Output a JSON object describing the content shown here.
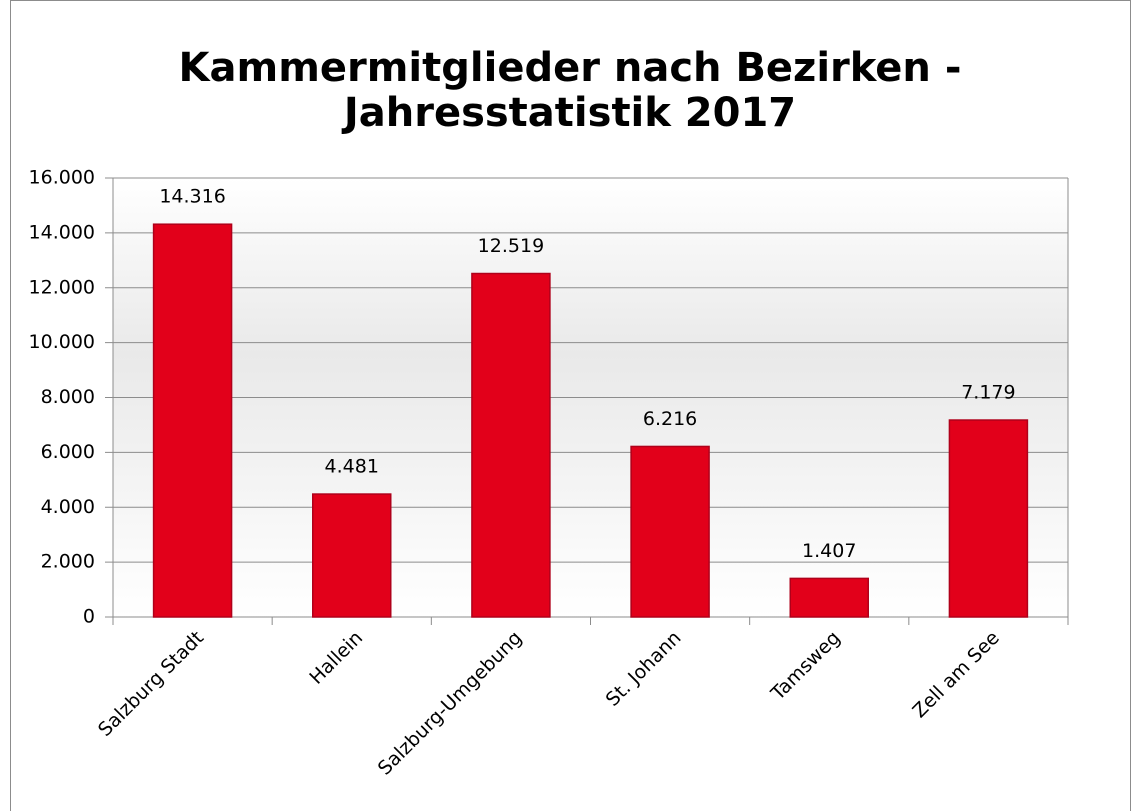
{
  "chart_data": {
    "type": "bar",
    "title": [
      "Kammermitglieder nach Bezirken -",
      "Jahresstatistik 2017"
    ],
    "categories": [
      "Salzburg Stadt",
      "Hallein",
      "Salzburg-Umgebung",
      "St. Johann",
      "Tamsweg",
      "Zell am See"
    ],
    "values": [
      14316,
      4481,
      12519,
      6216,
      1407,
      7179
    ],
    "value_labels": [
      "14.316",
      "4.481",
      "12.519",
      "6.216",
      "1.407",
      "7.179"
    ],
    "color": "#e2001a",
    "ylim": [
      0,
      16000
    ],
    "yticks": [
      0,
      {
        "value": 2000,
        "label": "2.000"
      },
      {
        "value": 4000,
        "label": "4.000"
      },
      {
        "value": 6000,
        "label": "6.000"
      },
      {
        "value": 8000,
        "label": "8.000"
      },
      {
        "value": 10000,
        "label": "10.000"
      },
      {
        "value": 12000,
        "label": "12.000"
      },
      {
        "value": 14000,
        "label": "14.000"
      },
      {
        "value": 16000,
        "label": "16.000"
      }
    ],
    "grid": true
  }
}
